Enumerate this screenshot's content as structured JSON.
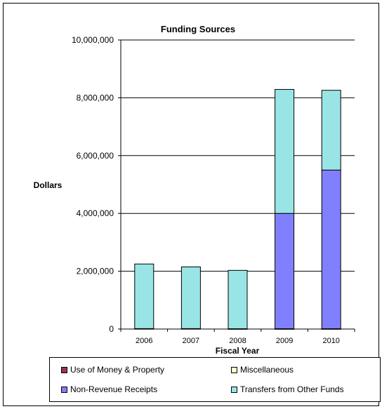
{
  "chart_data": {
    "type": "bar",
    "stacked": true,
    "title": "Funding Sources",
    "xlabel": "Fiscal Year",
    "ylabel": "Dollars",
    "categories": [
      "2006",
      "2007",
      "2008",
      "2009",
      "2010"
    ],
    "ylim": [
      0,
      10000000
    ],
    "yticks": [
      0,
      2000000,
      4000000,
      6000000,
      8000000,
      10000000
    ],
    "ytick_labels": [
      "0",
      "2,000,000",
      "4,000,000",
      "6,000,000",
      "8,000,000",
      "10,000,000"
    ],
    "grid": "horizontal",
    "legend_position": "bottom",
    "series": [
      {
        "name": "Use of Money & Property",
        "color": "#993366",
        "values": [
          15000,
          15000,
          10000,
          10000,
          10000
        ]
      },
      {
        "name": "Miscellaneous",
        "color": "#ffffcc",
        "values": [
          0,
          0,
          0,
          0,
          0
        ]
      },
      {
        "name": "Non-Revenue Receipts",
        "color": "#8080ff",
        "values": [
          0,
          0,
          0,
          3990000,
          5490000
        ]
      },
      {
        "name": "Transfers from Other Funds",
        "color": "#99e5e5",
        "values": [
          2235000,
          2135000,
          2020000,
          4290000,
          2760000
        ]
      }
    ]
  }
}
